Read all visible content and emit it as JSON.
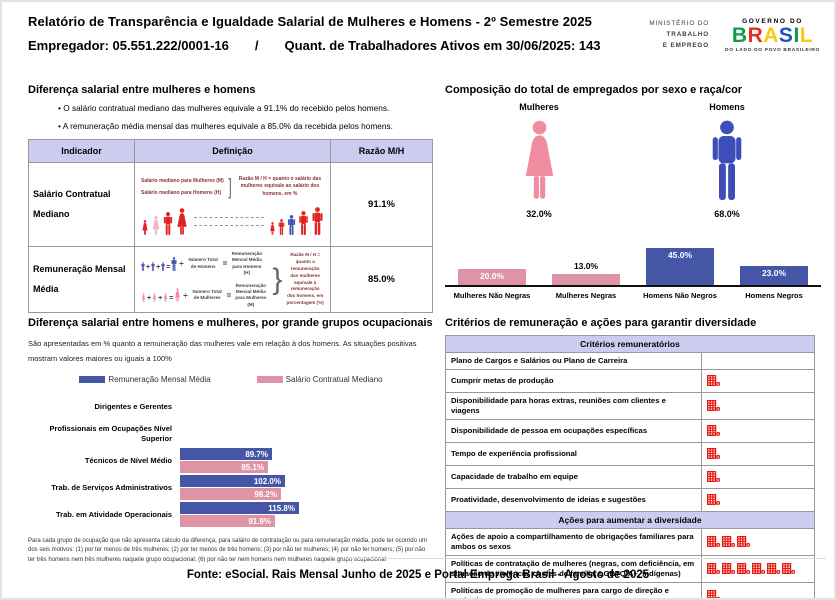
{
  "colors": {
    "bar_blue": "#4656a6",
    "bar_pink": "#df93a6",
    "male_icon": "#3d4eb8",
    "female_icon": "#f08ca0",
    "light_pink": "#efb6c3",
    "red": "#e02424",
    "icon_red": "#e8190f",
    "header_bg": "#ccccf0"
  },
  "header": {
    "title": "Relatório de Transparência e Igualdade Salarial de Mulheres e Homens - 2º Semestre 2025",
    "employer": "Empregador: 05.551.222/0001-16",
    "separator": "/",
    "workers": "Quant. de Trabalhadores Ativos em 30/06/2025: 143",
    "ministry_lines": [
      "MINISTÉRIO DO",
      "TRABALHO",
      "E EMPREGO"
    ],
    "gov_top": "GOVERNO DO",
    "gov_name": "BRASIL",
    "gov_tagline": "DO LADO DO POVO BRASILEIRO"
  },
  "salary_gap": {
    "title": "Diferença salarial entre mulheres e homens",
    "bullets": [
      "O salário contratual mediano das mulheres equivale a 91.1% do recebido pelos homens.",
      "A remuneração média mensal das mulheres equivale a 85.0% da recebida pelos homens."
    ],
    "table": {
      "headers": [
        "Indicador",
        "Definição",
        "Razão M/H"
      ],
      "row1": {
        "indicator": "Salário Contratual Mediano",
        "def_label_f": "Salário mediano para Mulheres (M)",
        "def_label_m": "Salário mediano para Homens (H)",
        "def_note": "Razão M / H = quanto o salário das mulheres equivale ao salário dos homens, em %",
        "ratio": "91.1%"
      },
      "row2": {
        "indicator": "Remuneração Mensal Média",
        "formula_m": {
          "divisor": "Número Total de Homens",
          "result": "Remuneração Mensal Média para Homens (H)"
        },
        "formula_f": {
          "divisor": "Número Total de Mulheres",
          "result": "Remuneração Mensal Média para Mulheres (M)"
        },
        "def_note": "Razão M / H = quanto a remuneração das mulheres equivale à remuneração dos homens, em porcentagem (%)",
        "ratio": "85.0%"
      }
    }
  },
  "composition": {
    "title": "Composição do total de empregados por sexo e raça/cor",
    "female_label": "Mulheres",
    "female_pct": "32.0%",
    "male_label": "Homens",
    "male_pct": "68.0%"
  },
  "occupation": {
    "title": "Diferença salarial entre homens e mulheres, por grande grupos ocupacionais",
    "subtitle": "São apresentadas em % quanto a remuneração das mulheres vale em relação à dos homens. As situações positivas mostram valores maiores ou iguais a 100%",
    "footnote": "Para cada grupo de ocupação que não apresenta cálculo da diferença, para salário de contratação ou para remuneração média, pode ter ocorrido um dos seis motivos: (1) por ter menos de três mulheres; (2) por ter menos de três homens; (3) por não ter mulheres; (4) por não ter homens; (5) por não ter três homens nem três mulheres naquele grupo ocupacional; (6) por não ter nem homens nem mulheres naquele grupo ocupacional"
  },
  "criteria": {
    "title": "Critérios de remuneração e ações para garantir diversidade",
    "sections": [
      {
        "header": "Critérios remuneratórios",
        "rows": [
          {
            "label": "Plano de Cargos e Salários ou Plano de Carreira",
            "icons": 0
          },
          {
            "label": "Cumprir metas de produção",
            "icons": 1
          },
          {
            "label": "Disponibilidade para horas extras, reuniões com clientes e viagens",
            "icons": 1
          },
          {
            "label": "Disponibilidade de pessoa em ocupações específicas",
            "icons": 1
          },
          {
            "label": "Tempo de experiência profissional",
            "icons": 1
          },
          {
            "label": "Capacidade de trabalho em equipe",
            "icons": 1
          },
          {
            "label": "Proatividade, desenvolvimento de ideias e sugestões",
            "icons": 1
          }
        ]
      },
      {
        "header": "Ações para aumentar a diversidade",
        "rows": [
          {
            "label": "Ações de apoio a compartilhamento de obrigações familiares para ambos os sexos",
            "icons": 3
          },
          {
            "label": "Políticas de contratação de mulheres (negras, com deficiência, em situação de violência, chefes de família, LGBTQIA+, indígenas)",
            "icons": 6
          },
          {
            "label": "Políticas de promoção de mulheres para cargo de direção e gerência",
            "icons": 1
          }
        ]
      }
    ]
  },
  "footer": "Fonte: eSocial. Rais Mensal Junho de 2025 e Portal Emprega Brasil - Agosto de 2025",
  "chart_data": [
    {
      "type": "bar",
      "title": "Composição do total de empregados por sexo e raça/cor",
      "categories": [
        "Mulheres Não Negras",
        "Mulheres Negras",
        "Homens Não Negros",
        "Homens Negros"
      ],
      "values": [
        20.0,
        13.0,
        45.0,
        23.0
      ],
      "unit": "%",
      "bar_colors": [
        "#df93a6",
        "#df93a6",
        "#4656a6",
        "#4656a6"
      ],
      "ylim": [
        0,
        50
      ],
      "grid": false,
      "legend_position": "none",
      "totals": {
        "Mulheres": 32.0,
        "Homens": 68.0
      }
    },
    {
      "type": "bar",
      "orientation": "horizontal",
      "title": "Diferença salarial entre homens e mulheres, por grande grupos ocupacionais",
      "categories": [
        "Dirigentes e Gerentes",
        "Profissionais em Ocupações Nível Superior",
        "Técnicos de Nível Médio",
        "Trab. de Serviços Administrativos",
        "Trab. em Atividade Operacionais"
      ],
      "series": [
        {
          "name": "Remuneração Mensal Média",
          "color": "#4656a6",
          "values": [
            null,
            null,
            89.7,
            102.0,
            115.8
          ]
        },
        {
          "name": "Salário Contratual Mediano",
          "color": "#df93a6",
          "values": [
            null,
            null,
            85.1,
            98.2,
            91.9
          ]
        }
      ],
      "unit": "%",
      "xlim": [
        0,
        120
      ],
      "grid": false,
      "legend_position": "top"
    }
  ]
}
